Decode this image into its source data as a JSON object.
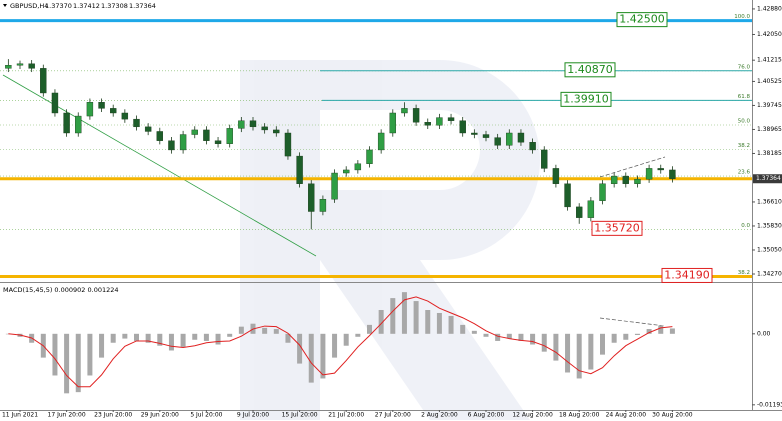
{
  "chart_data": [
    {
      "type": "candlestick",
      "symbol": "GBPUSD,H4",
      "ohlc_labels": [
        "1.37370",
        "1.37412",
        "1.37308",
        "1.37364"
      ],
      "categories": [
        null,
        "11 Jun 2021",
        null,
        null,
        null,
        "17 Jun 20:00",
        null,
        null,
        null,
        "23 Jun 20:00",
        null,
        null,
        null,
        "29 Jun 20:00",
        null,
        null,
        null,
        "5 Jul 20:00",
        null,
        null,
        null,
        "9 Jul 20:00",
        null,
        null,
        null,
        "15 Jul 20:00",
        null,
        null,
        null,
        "21 Jul 20:00",
        null,
        null,
        null,
        "27 Jul 20:00",
        null,
        null,
        null,
        "2 Aug 20:00",
        null,
        null,
        null,
        "6 Aug 20:00",
        null,
        null,
        null,
        "12 Aug 20:00",
        null,
        null,
        null,
        "18 Aug 20:00",
        null,
        null,
        null,
        "24 Aug 20:00",
        null,
        null,
        null,
        "30 Aug 20:00"
      ],
      "open": [
        1.4095,
        1.4105,
        1.411,
        1.4095,
        1.4015,
        1.395,
        1.3885,
        1.394,
        1.3985,
        1.3965,
        1.395,
        1.393,
        1.3905,
        1.389,
        1.386,
        1.383,
        1.388,
        1.3895,
        1.386,
        1.385,
        1.39,
        1.3925,
        1.3905,
        1.3895,
        1.3885,
        1.381,
        1.372,
        1.363,
        1.367,
        1.3755,
        1.3765,
        1.3785,
        1.383,
        1.3885,
        1.395,
        1.3965,
        1.392,
        1.391,
        1.3935,
        1.3925,
        1.3885,
        1.388,
        1.387,
        1.3845,
        1.3885,
        1.3855,
        1.383,
        1.377,
        1.372,
        1.3645,
        1.361,
        1.3665,
        1.372,
        1.3745,
        1.372,
        1.3735,
        1.377,
        1.3765
      ],
      "high": [
        1.4125,
        1.412,
        1.4122,
        1.4107,
        1.4027,
        1.3962,
        1.3952,
        1.3997,
        1.3997,
        1.3977,
        1.3962,
        1.3942,
        1.3917,
        1.3902,
        1.3872,
        1.3892,
        1.3907,
        1.3907,
        1.3872,
        1.3912,
        1.3937,
        1.3937,
        1.3917,
        1.3907,
        1.3897,
        1.3822,
        1.3732,
        1.3682,
        1.3767,
        1.3777,
        1.3797,
        1.3842,
        1.3897,
        1.3962,
        1.3985,
        1.3977,
        1.3932,
        1.3947,
        1.3947,
        1.3937,
        1.3897,
        1.3892,
        1.3882,
        1.3897,
        1.3897,
        1.3867,
        1.3842,
        1.3782,
        1.3732,
        1.3657,
        1.3677,
        1.3732,
        1.3757,
        1.3757,
        1.3747,
        1.3782,
        1.3782,
        1.3777
      ],
      "low": [
        1.4083,
        1.4093,
        1.4083,
        1.4003,
        1.3938,
        1.3873,
        1.3873,
        1.3928,
        1.3953,
        1.3938,
        1.3918,
        1.3893,
        1.3878,
        1.3848,
        1.3818,
        1.3818,
        1.3868,
        1.3848,
        1.3838,
        1.3838,
        1.3888,
        1.3893,
        1.3883,
        1.3873,
        1.3798,
        1.3708,
        1.3572,
        1.3618,
        1.3658,
        1.3743,
        1.3753,
        1.3773,
        1.3818,
        1.3873,
        1.3938,
        1.3908,
        1.3898,
        1.3898,
        1.3913,
        1.3873,
        1.3868,
        1.3858,
        1.3833,
        1.3833,
        1.3843,
        1.3818,
        1.3758,
        1.3708,
        1.3633,
        1.359,
        1.3598,
        1.3653,
        1.3708,
        1.3708,
        1.3708,
        1.3723,
        1.3753,
        1.3724
      ],
      "close": [
        1.4105,
        1.411,
        1.4095,
        1.4015,
        1.395,
        1.3885,
        1.394,
        1.3985,
        1.3965,
        1.395,
        1.393,
        1.3905,
        1.389,
        1.386,
        1.383,
        1.388,
        1.3895,
        1.386,
        1.385,
        1.39,
        1.3925,
        1.3905,
        1.3895,
        1.3885,
        1.381,
        1.372,
        1.363,
        1.367,
        1.3755,
        1.3765,
        1.3785,
        1.383,
        1.3885,
        1.395,
        1.3965,
        1.392,
        1.391,
        1.3935,
        1.3925,
        1.3885,
        1.388,
        1.387,
        1.3845,
        1.3885,
        1.3855,
        1.383,
        1.377,
        1.372,
        1.3645,
        1.361,
        1.3665,
        1.372,
        1.3745,
        1.372,
        1.3735,
        1.377,
        1.3765,
        1.37364
      ],
      "bull_color": "#2f9e44",
      "bear_color": "#1d5e2a",
      "ylim": [
        1.3401,
        1.4317
      ],
      "yticks": [
        {
          "value": 1.4288,
          "label": "1.42880"
        },
        {
          "value": 1.4205,
          "label": "1.42050"
        },
        1.41215,
        1.40525,
        1.39745,
        1.38965,
        1.38185,
        {
          "value": 1.3661,
          "label": "1.36610"
        },
        {
          "value": 1.3583,
          "label": "1.35830"
        },
        {
          "value": 1.3505,
          "label": "1.35050"
        },
        {
          "value": 1.3427,
          "label": "1.34270"
        }
      ],
      "current_price": 1.37364,
      "fib_levels": [
        {
          "value": 1.425,
          "label": "100.0"
        },
        {
          "value": 1.4087,
          "label": "76.0"
        },
        {
          "value": 1.3991,
          "label": "61.8"
        },
        {
          "value": 1.3911,
          "label": "50.0"
        },
        {
          "value": 1.3831,
          "label": "38.2"
        },
        {
          "value": 1.3745,
          "label": "23.6"
        },
        {
          "value": 1.3572,
          "label": "0.0"
        },
        {
          "value": 1.3419,
          "label": "38.2"
        }
      ],
      "lines": [
        {
          "value": 1.425,
          "color": "#1ea8e8"
        },
        {
          "value": 1.4087,
          "color": "#2aa7a7"
        },
        {
          "value": 1.3991,
          "color": "#2aa7a7"
        },
        {
          "value": 1.37364,
          "color": "#f5b400"
        },
        {
          "value": 1.3419,
          "color": "#f5b400"
        }
      ],
      "price_labels": [
        {
          "value": 1.425,
          "label": "1.42500",
          "color": "#1d8a1d"
        },
        {
          "value": 1.4087,
          "label": "1.40870",
          "color": "#1d8a1d"
        },
        {
          "value": 1.3991,
          "label": "1.39910",
          "color": "#1d8a1d"
        },
        {
          "value": 1.3572,
          "label": "1.35720",
          "color": "#e02020"
        },
        {
          "value": 1.3419,
          "label": "1.34190",
          "color": "#e02020"
        }
      ]
    },
    {
      "type": "macd",
      "title": "MACD(15,45,5) 0.000902 0.001224",
      "ylim": [
        -0.0128,
        0.0082
      ],
      "yticks": [
        {
          "value": 0,
          "label": "0.00"
        },
        -0.01193
      ],
      "histogram_color": "#a8a8a8",
      "signal_color": "#e02020",
      "histogram": [
        0.0,
        -0.0005,
        -0.0015,
        -0.004,
        -0.007,
        -0.01,
        -0.0098,
        -0.007,
        -0.004,
        -0.0015,
        -0.0008,
        -0.0012,
        -0.0015,
        -0.002,
        -0.0028,
        -0.0022,
        -0.001,
        -0.0012,
        -0.0018,
        -0.0005,
        0.0012,
        0.0017,
        0.001,
        0.0008,
        -0.0015,
        -0.005,
        -0.0082,
        -0.0075,
        -0.004,
        -0.002,
        -0.0005,
        0.0015,
        0.004,
        0.006,
        0.007,
        0.0055,
        0.004,
        0.0035,
        0.003,
        0.0015,
        0.0005,
        -0.0005,
        -0.0012,
        -0.0008,
        -0.0012,
        -0.0018,
        -0.003,
        -0.0045,
        -0.0065,
        -0.0075,
        -0.006,
        -0.0035,
        -0.0015,
        -0.001,
        -0.0002,
        0.0008,
        0.0014,
        0.0009
      ],
      "signal": [
        0.0,
        -0.0002,
        -0.0007,
        -0.002,
        -0.0042,
        -0.007,
        -0.0089,
        -0.0089,
        -0.0069,
        -0.0042,
        -0.0021,
        -0.0012,
        -0.0012,
        -0.0016,
        -0.0021,
        -0.0023,
        -0.002,
        -0.0015,
        -0.0013,
        -0.0012,
        -0.0004,
        0.0008,
        0.0013,
        0.0012,
        0.0001,
        -0.0019,
        -0.0049,
        -0.0069,
        -0.0066,
        -0.0045,
        -0.0022,
        -0.0003,
        0.0017,
        0.0038,
        0.0057,
        0.0062,
        0.0055,
        0.0043,
        0.0035,
        0.0027,
        0.0017,
        0.0005,
        -0.0004,
        -0.0008,
        -0.0011,
        -0.0013,
        -0.002,
        -0.0031,
        -0.0047,
        -0.0062,
        -0.0067,
        -0.0057,
        -0.0037,
        -0.002,
        -0.0009,
        0.0002,
        0.001,
        0.0012
      ]
    }
  ]
}
